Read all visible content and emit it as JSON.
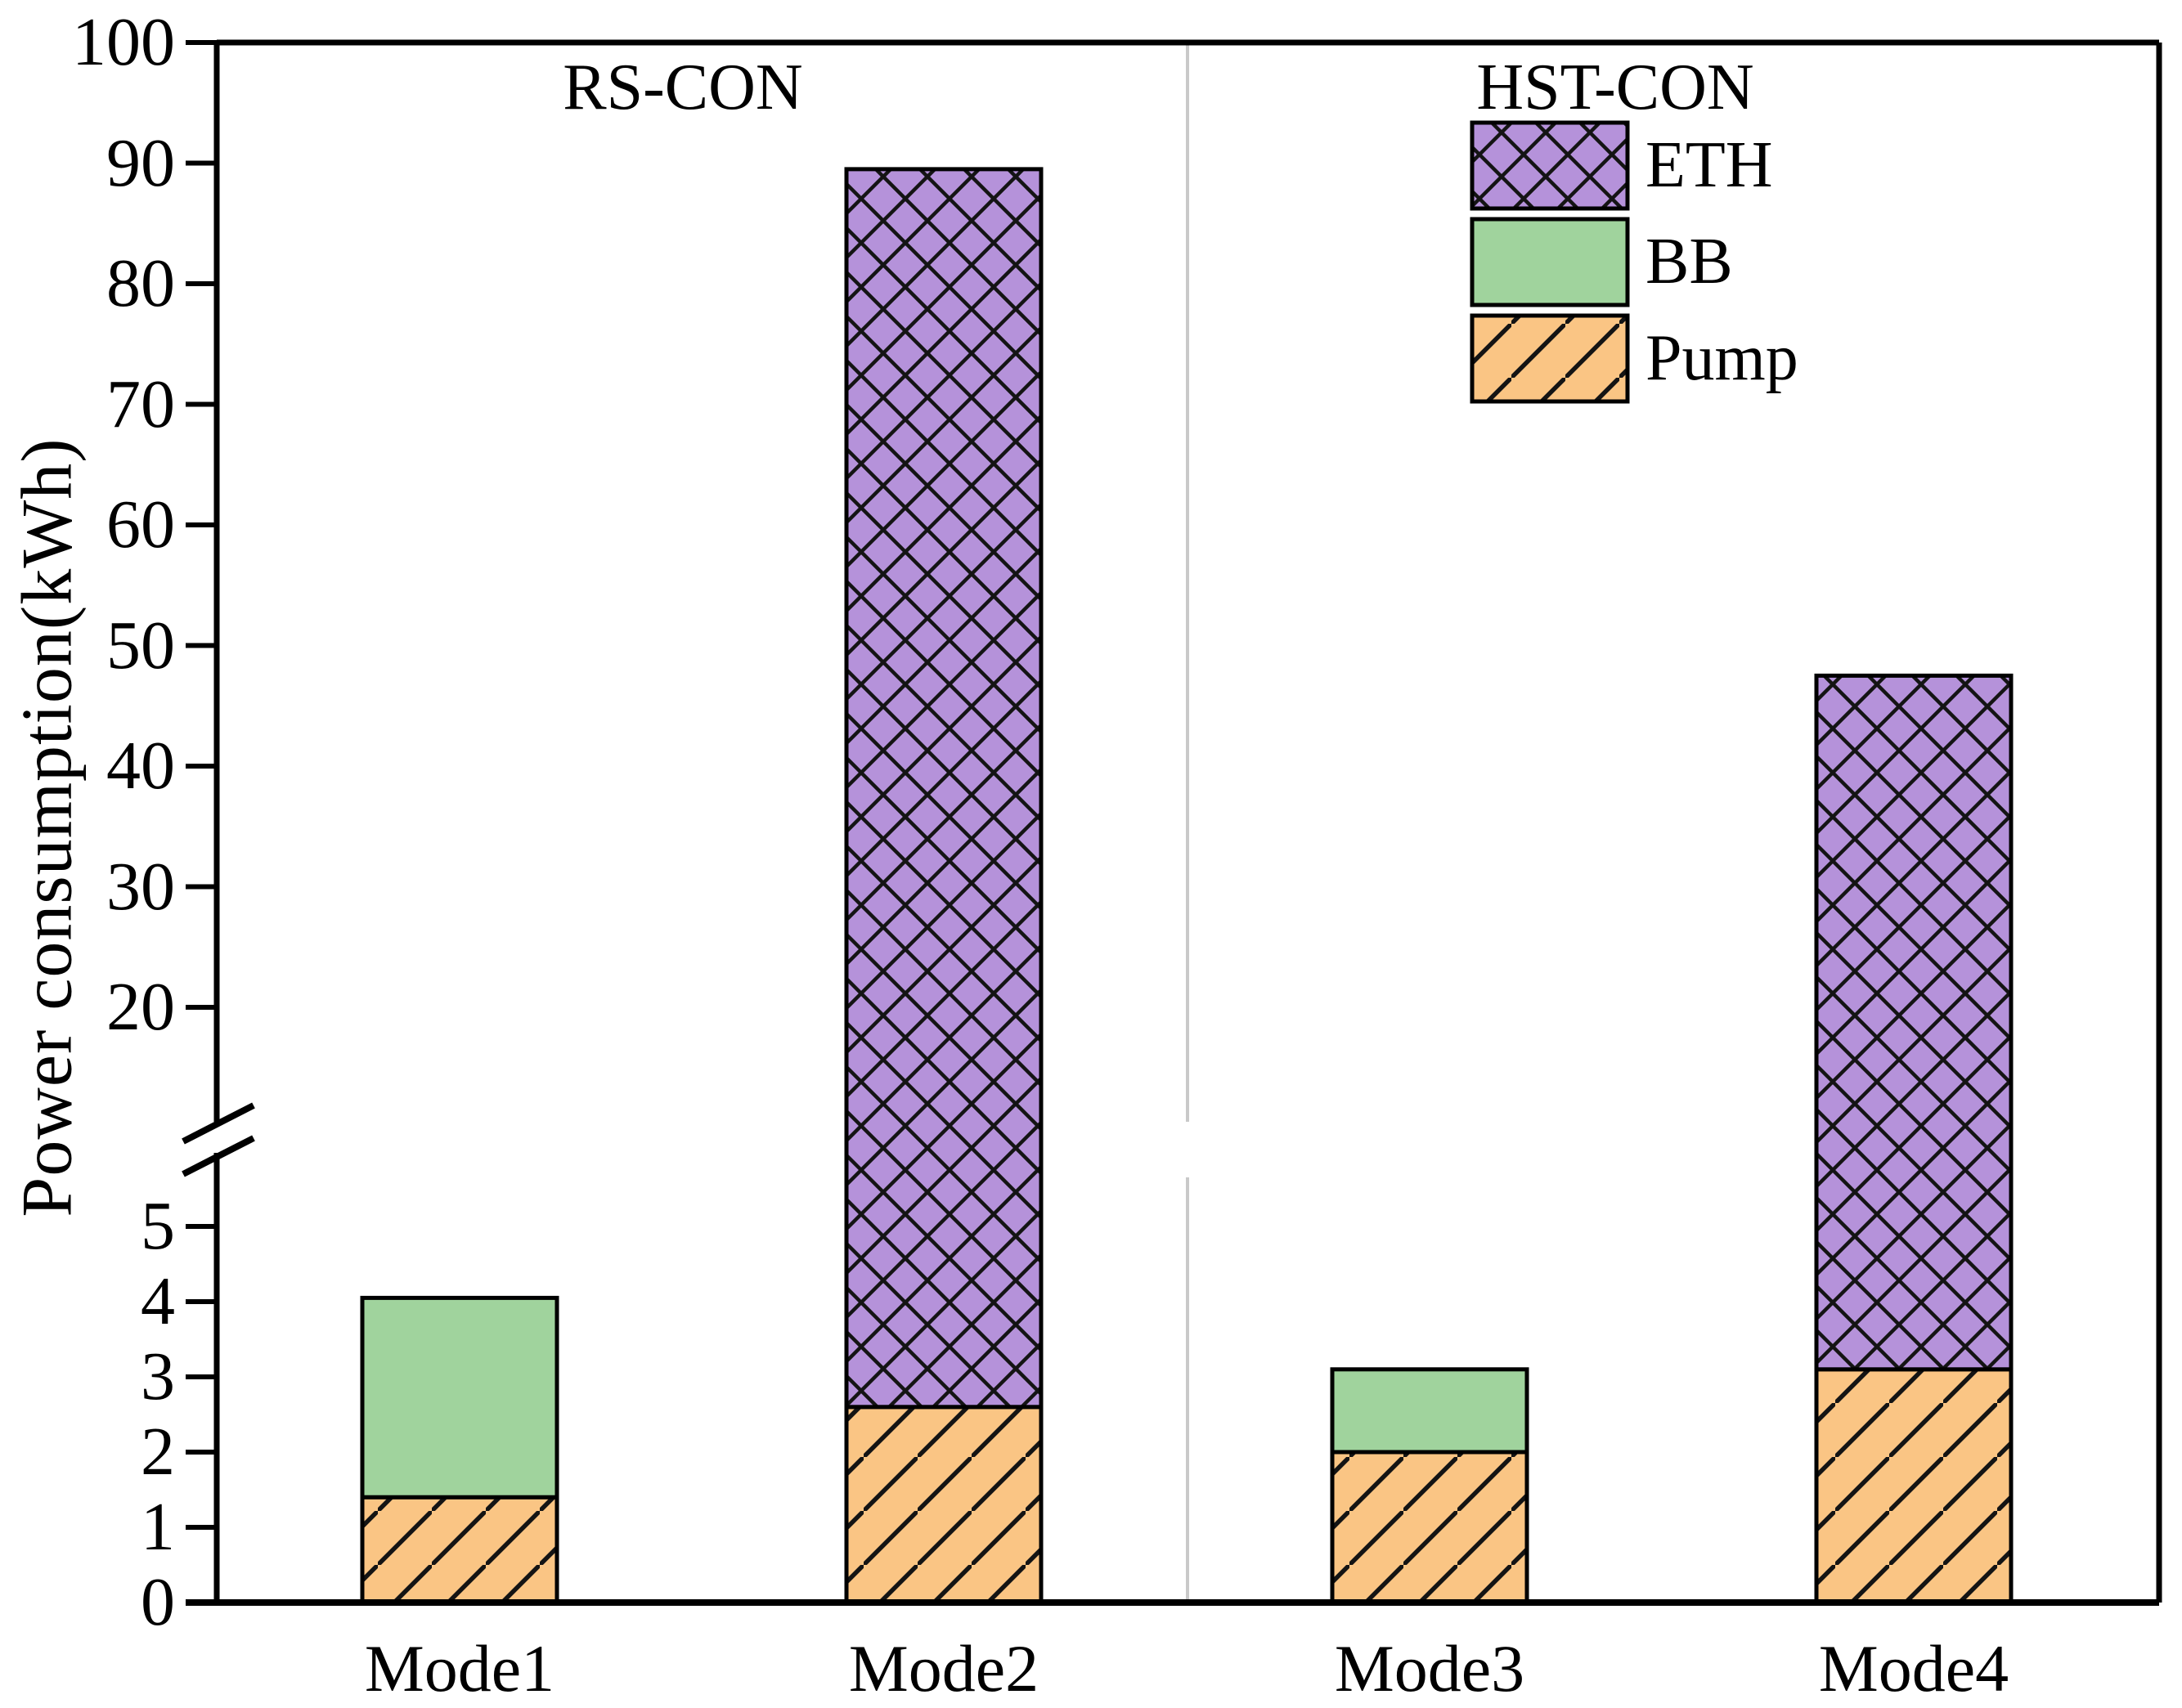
{
  "chart_data": {
    "type": "bar",
    "subtype": "stacked-bars-with-broken-y-axis",
    "categories": [
      "Mode1",
      "Mode2",
      "Mode3",
      "Mode4"
    ],
    "series": [
      {
        "name": "Pump",
        "values": [
          1.4,
          2.6,
          2.0,
          3.1
        ],
        "color": "#fac584",
        "hatch": "diagonal"
      },
      {
        "name": "BB",
        "values": [
          2.65,
          0,
          1.1,
          0
        ],
        "color": "#a0d39d",
        "hatch": "none"
      },
      {
        "name": "ETH",
        "values": [
          0,
          86.9,
          0,
          44.4
        ],
        "color": "#b592da",
        "hatch": "crosshatch"
      }
    ],
    "stack_totals": [
      4.05,
      89.5,
      3.1,
      47.5
    ],
    "title": "",
    "xlabel": "",
    "ylabel": "Power consumption(kWh)",
    "upper_ticks": [
      100,
      90,
      80,
      70,
      60,
      50,
      40,
      30,
      20
    ],
    "lower_ticks": [
      5,
      4,
      3,
      2,
      1,
      0
    ],
    "axis_break": {
      "lower_range": [
        0,
        5.8
      ],
      "upper_range": [
        10.3,
        100
      ]
    },
    "group_labels": [
      {
        "label": "RS-CON",
        "covers": [
          "Mode1",
          "Mode2"
        ]
      },
      {
        "label": "HST-CON",
        "covers": [
          "Mode3",
          "Mode4"
        ]
      }
    ],
    "legend": [
      {
        "label": "ETH",
        "series": "ETH"
      },
      {
        "label": "BB",
        "series": "BB"
      },
      {
        "label": "Pump",
        "series": "Pump"
      }
    ],
    "grid": false,
    "legend_position": "upper-right-inside"
  },
  "colors": {
    "eth": "#b592da",
    "bb": "#a0d39d",
    "pump": "#fac584",
    "hatch_line": "#141414",
    "frame": "#000000",
    "separator": "#c9c9c9",
    "background": "#ffffff"
  }
}
